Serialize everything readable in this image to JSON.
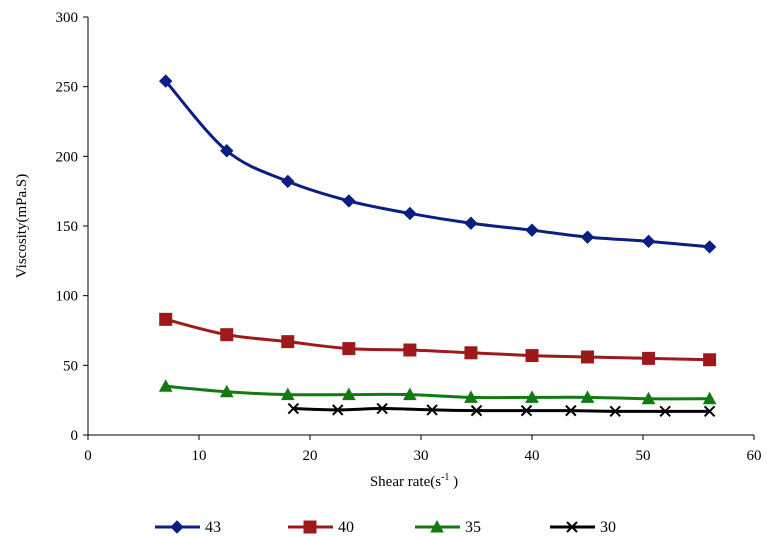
{
  "chart_data": {
    "type": "line",
    "xlabel": "Shear rate(s",
    "xlabel_sup": "-1",
    "xlabel_suffix": " )",
    "ylabel": "Viscosity(mPa.S)",
    "xlim": [
      0,
      60
    ],
    "ylim": [
      0,
      300
    ],
    "xticks": [
      0,
      10,
      20,
      30,
      40,
      50,
      60
    ],
    "yticks": [
      0,
      50,
      100,
      150,
      200,
      250,
      300
    ],
    "grid": false,
    "legend_position": "bottom",
    "series": [
      {
        "name": "43",
        "color": "#0b1f82",
        "marker": "diamond",
        "x": [
          7,
          12.5,
          18,
          23.5,
          29,
          34.5,
          40,
          45,
          50.5,
          56
        ],
        "y": [
          254,
          204,
          182,
          168,
          159,
          152,
          147,
          142,
          139,
          135
        ]
      },
      {
        "name": "40",
        "color": "#9e1a1a",
        "marker": "square",
        "x": [
          7,
          12.5,
          18,
          23.5,
          29,
          34.5,
          40,
          45,
          50.5,
          56
        ],
        "y": [
          83,
          72,
          67,
          62,
          61,
          59,
          57,
          56,
          55,
          54
        ]
      },
      {
        "name": "35",
        "color": "#137a13",
        "marker": "triangle",
        "x": [
          7,
          12.5,
          18,
          23.5,
          29,
          34.5,
          40,
          45,
          50.5,
          56
        ],
        "y": [
          35,
          31,
          29,
          29,
          29,
          27,
          27,
          27,
          26,
          26
        ]
      },
      {
        "name": "30",
        "color": "#000000",
        "marker": "x",
        "x": [
          18.5,
          22.5,
          26.5,
          31,
          35,
          39.5,
          43.5,
          47.5,
          52,
          56
        ],
        "y": [
          19,
          18,
          19,
          18,
          17.5,
          17.5,
          17.5,
          17,
          17,
          17
        ]
      }
    ]
  }
}
